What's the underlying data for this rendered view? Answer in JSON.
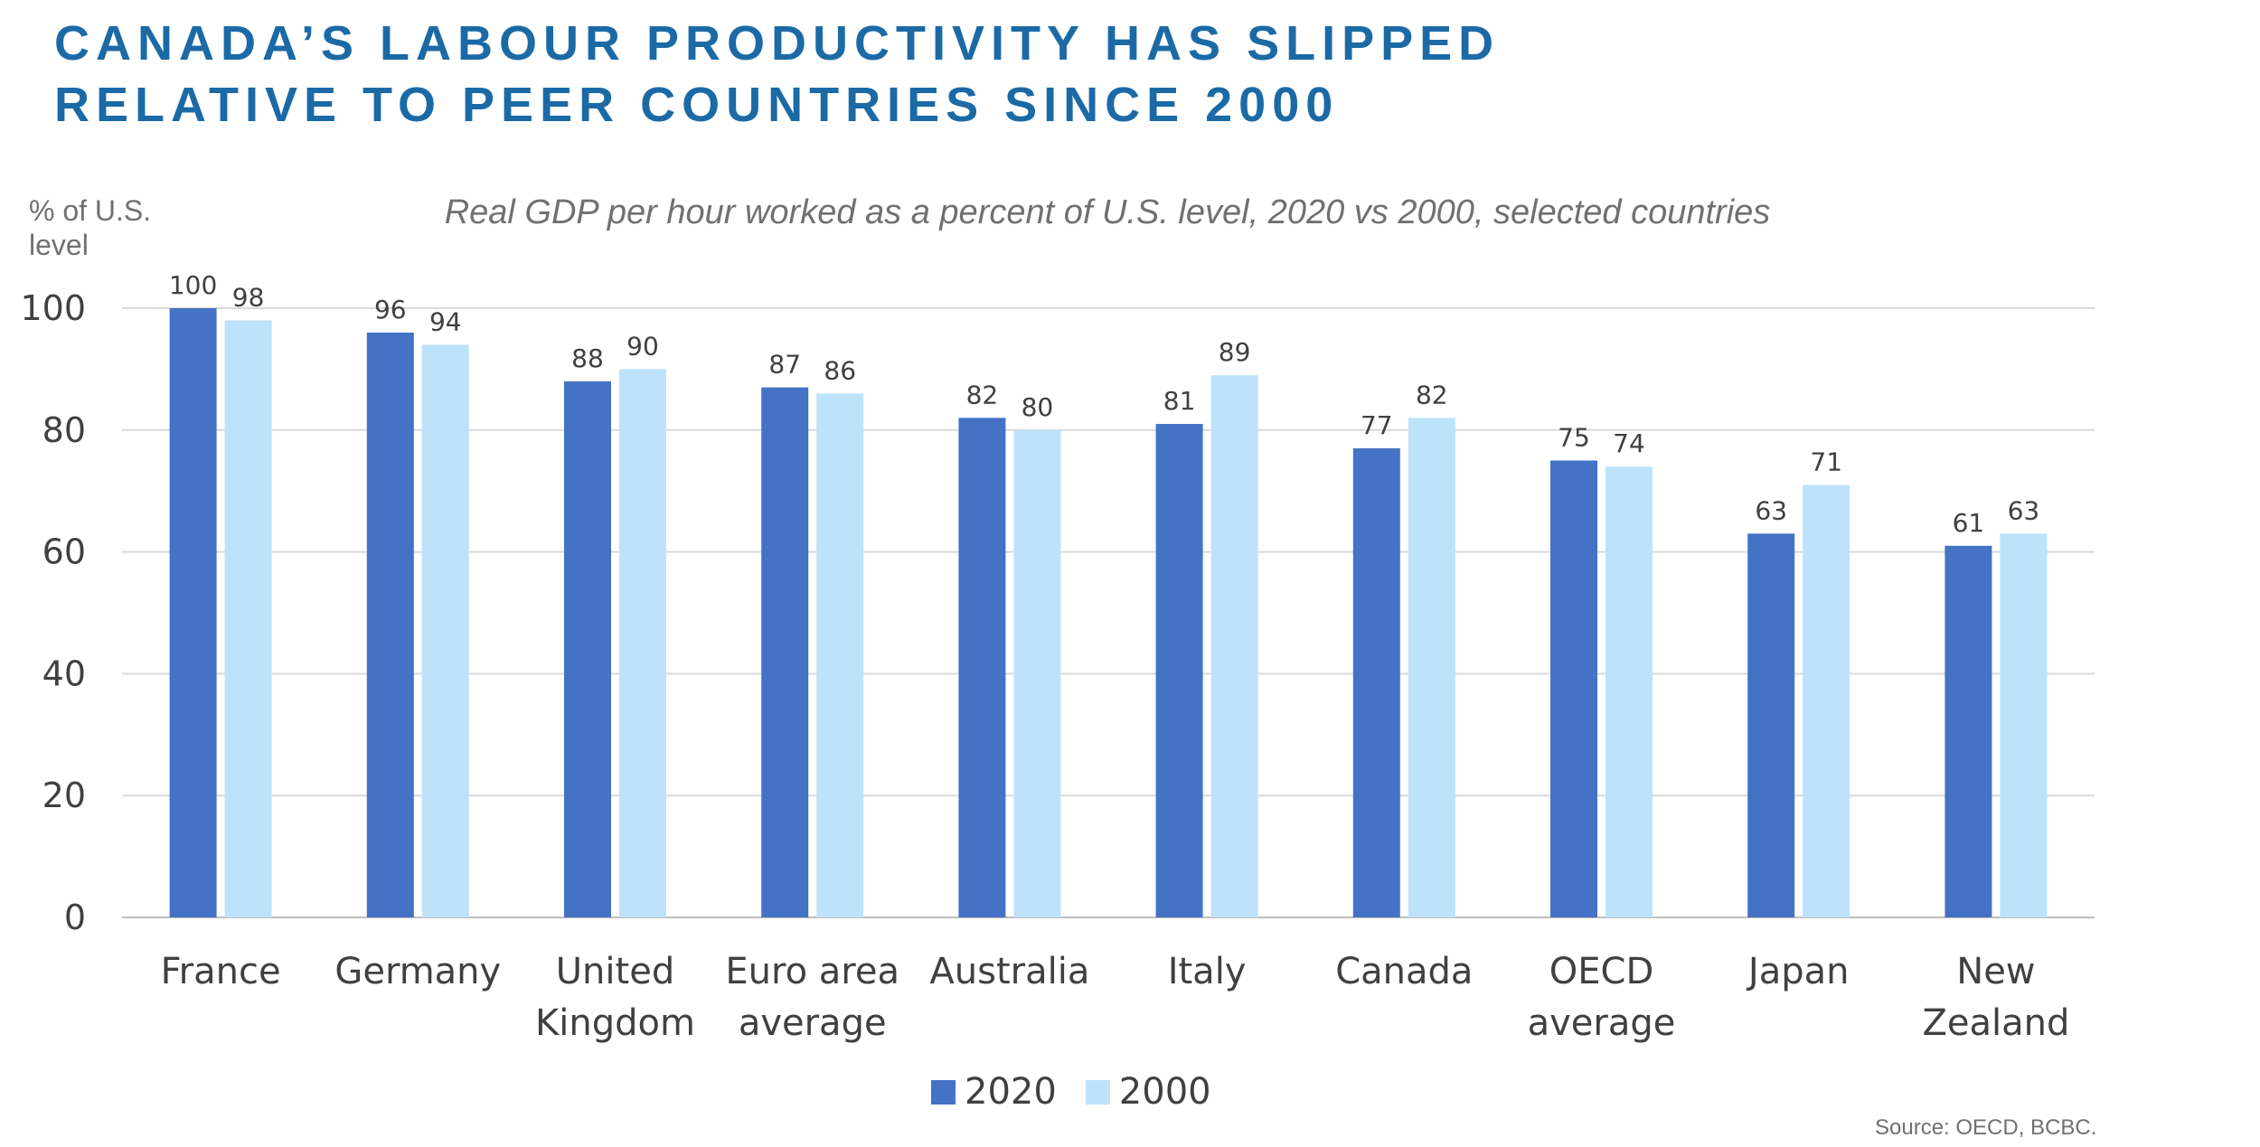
{
  "header": {
    "title_line1": "CANADA’S LABOUR PRODUCTIVITY HAS SLIPPED",
    "title_line2": "RELATIVE TO PEER COUNTRIES SINCE 2000",
    "title_color": "#1b6aa6"
  },
  "source": "Source: OECD, BCBC.",
  "chart_data": {
    "type": "bar",
    "title": "Real GDP per hour worked as a percent of U.S. level, 2020 vs 2000, selected countries",
    "ylabel": "% of U.S. level",
    "xlabel": "",
    "ylim": [
      0,
      100
    ],
    "yticks": [
      0,
      20,
      40,
      60,
      80,
      100
    ],
    "grid": true,
    "legend_position": "bottom",
    "categories": [
      [
        "France"
      ],
      [
        "Germany"
      ],
      [
        "United",
        "Kingdom"
      ],
      [
        "Euro area",
        "average"
      ],
      [
        "Australia"
      ],
      [
        "Italy"
      ],
      [
        "Canada"
      ],
      [
        "OECD",
        "average"
      ],
      [
        "Japan"
      ],
      [
        "New",
        "Zealand"
      ]
    ],
    "series": [
      {
        "name": "2020",
        "color": "#4472c4",
        "values": [
          100,
          96,
          88,
          87,
          82,
          81,
          77,
          75,
          63,
          61
        ]
      },
      {
        "name": "2000",
        "color": "#bde3fa",
        "values": [
          98,
          94,
          90,
          86,
          80,
          89,
          82,
          74,
          71,
          63
        ]
      }
    ]
  }
}
